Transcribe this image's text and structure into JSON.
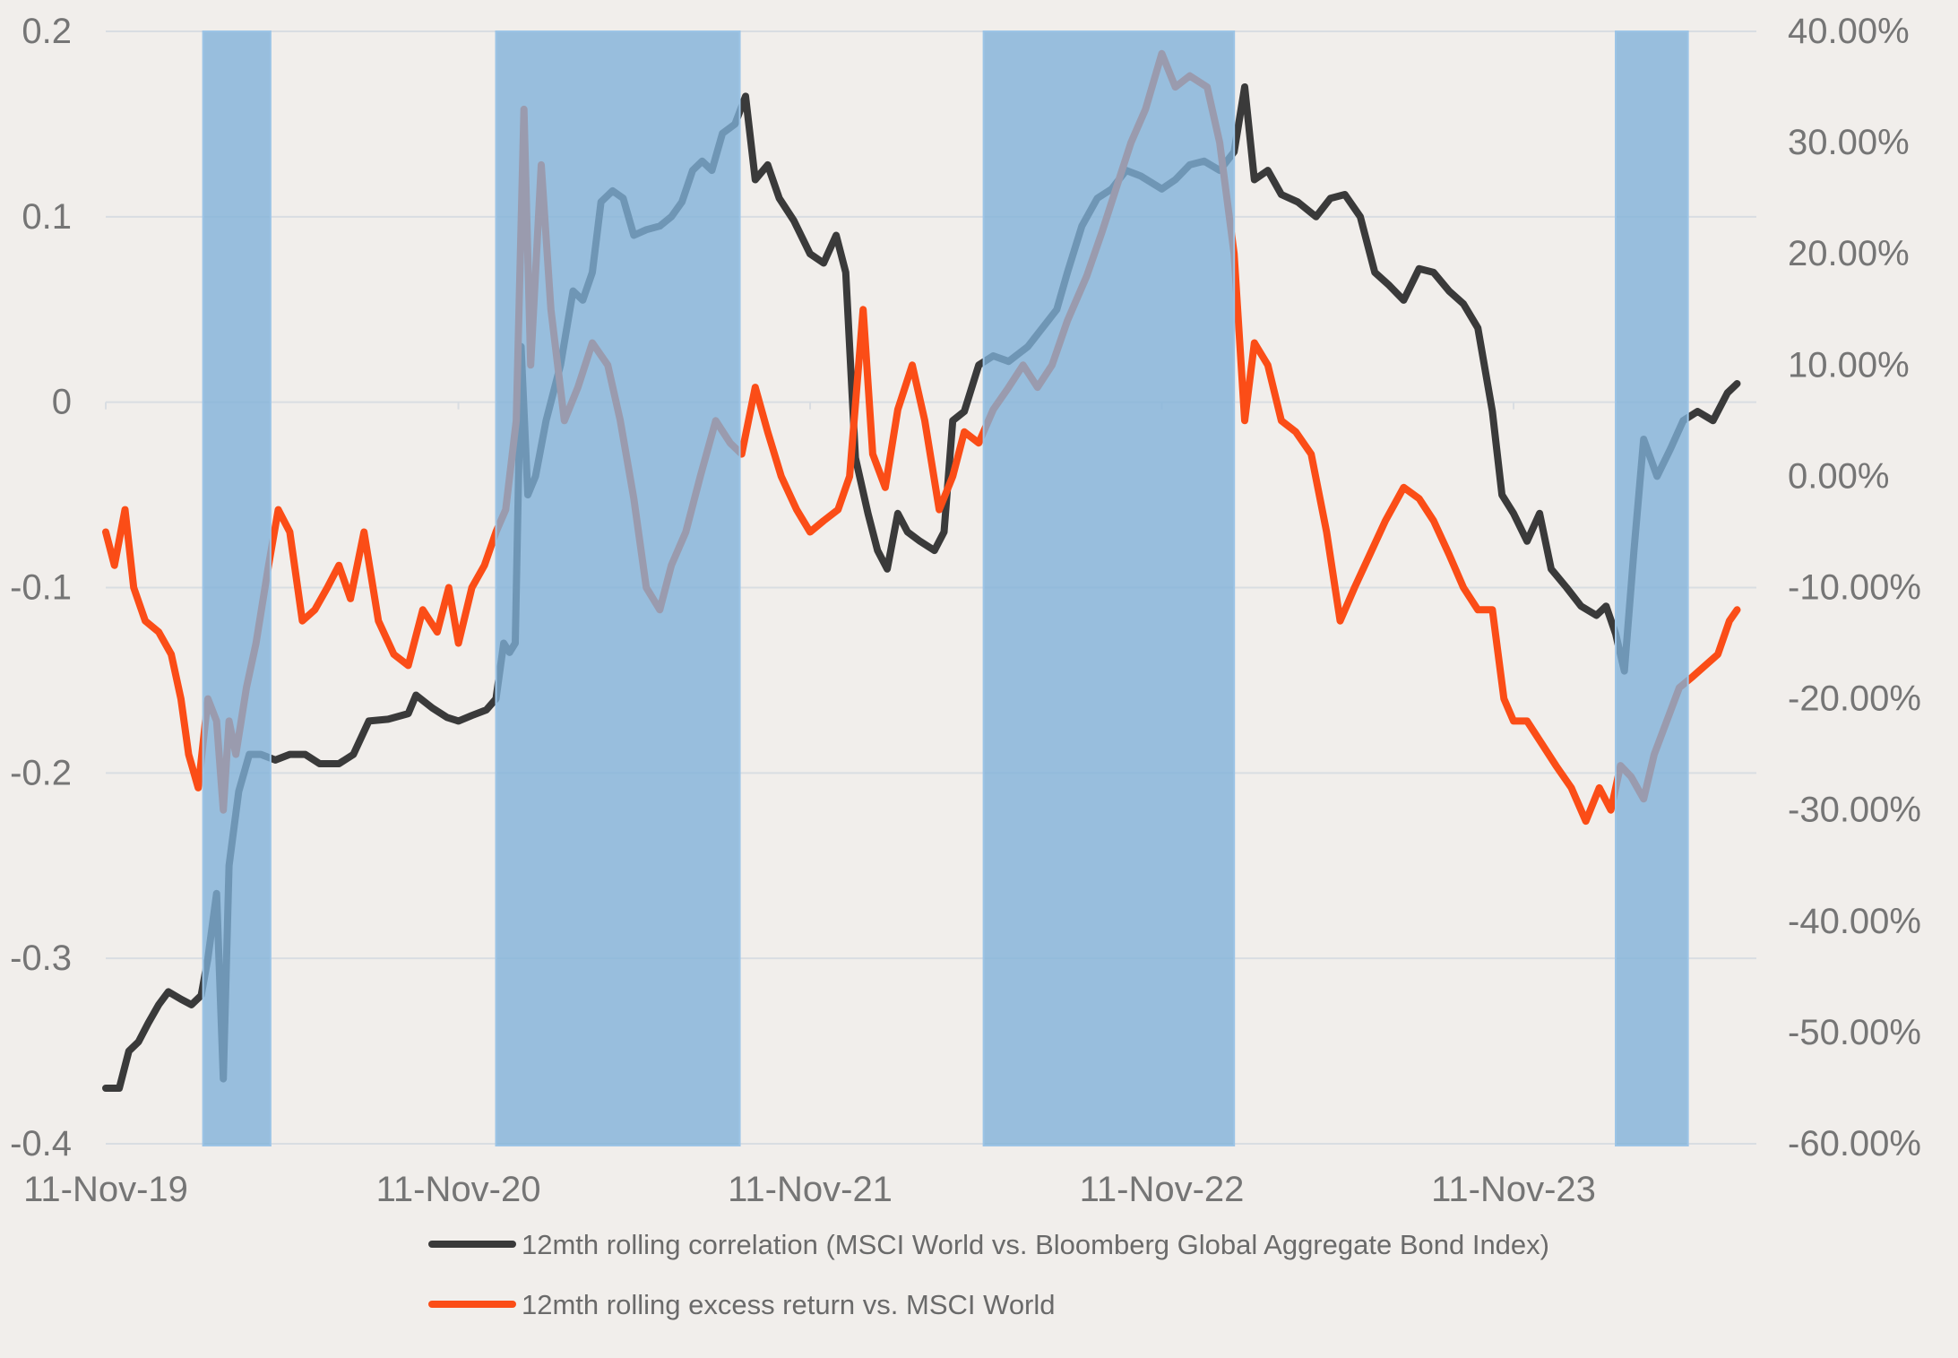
{
  "chart_data": {
    "type": "line",
    "title": "",
    "xlabel": "",
    "ylabel": "",
    "x_axis": {
      "type": "date",
      "range": [
        "2019-11-11",
        "2024-07-20"
      ],
      "tick_labels": [
        "11-Nov-19",
        "11-Nov-20",
        "11-Nov-21",
        "11-Nov-22",
        "11-Nov-23"
      ],
      "tick_dates": [
        "2019-11-11",
        "2020-11-11",
        "2021-11-11",
        "2022-11-11",
        "2023-11-11"
      ]
    },
    "y_left": {
      "range": [
        -0.4,
        0.2
      ],
      "ticks": [
        0.2,
        0.1,
        0,
        -0.1,
        -0.2,
        -0.3,
        -0.4
      ],
      "tick_labels": [
        "0.2",
        "0.1",
        "0",
        "-0.1",
        "-0.2",
        "-0.3",
        "-0.4"
      ]
    },
    "y_right": {
      "range": [
        -60,
        40
      ],
      "ticks": [
        40,
        30,
        20,
        10,
        0,
        -10,
        -20,
        -30,
        -40,
        -50,
        -60
      ],
      "tick_labels": [
        "40.00%",
        "30.00%",
        "20.00%",
        "10.00%",
        "0.00%",
        "-10.00%",
        "-20.00%",
        "-30.00%",
        "-40.00%",
        "-50.00%",
        "-60.00%"
      ]
    },
    "grid": true,
    "legend_position": "bottom",
    "shaded_periods": [
      {
        "start": "2020-02-20",
        "end": "2020-04-30"
      },
      {
        "start": "2020-12-20",
        "end": "2021-08-30"
      },
      {
        "start": "2022-05-10",
        "end": "2023-01-25"
      },
      {
        "start": "2024-02-25",
        "end": "2024-05-10"
      }
    ],
    "shade_color": "#7fb1d9",
    "series": [
      {
        "name": "12mth rolling correlation (MSCI World vs. Bloomberg Global Aggregate Bond Index)",
        "axis": "left",
        "color": "#3a3a3a",
        "points": [
          [
            "2019-11-11",
            -0.37
          ],
          [
            "2019-11-25",
            -0.37
          ],
          [
            "2019-12-05",
            -0.35
          ],
          [
            "2019-12-15",
            -0.345
          ],
          [
            "2019-12-25",
            -0.335
          ],
          [
            "2020-01-05",
            -0.325
          ],
          [
            "2020-01-15",
            -0.318
          ],
          [
            "2020-01-28",
            -0.322
          ],
          [
            "2020-02-08",
            -0.325
          ],
          [
            "2020-02-18",
            -0.32
          ],
          [
            "2020-02-25",
            -0.3
          ],
          [
            "2020-03-05",
            -0.265
          ],
          [
            "2020-03-12",
            -0.365
          ],
          [
            "2020-03-18",
            -0.25
          ],
          [
            "2020-03-28",
            -0.21
          ],
          [
            "2020-04-08",
            -0.19
          ],
          [
            "2020-04-20",
            -0.19
          ],
          [
            "2020-05-05",
            -0.193
          ],
          [
            "2020-05-20",
            -0.19
          ],
          [
            "2020-06-05",
            -0.19
          ],
          [
            "2020-06-20",
            -0.195
          ],
          [
            "2020-07-10",
            -0.195
          ],
          [
            "2020-07-25",
            -0.19
          ],
          [
            "2020-08-10",
            -0.172
          ],
          [
            "2020-08-30",
            -0.171
          ],
          [
            "2020-09-20",
            -0.168
          ],
          [
            "2020-09-28",
            -0.158
          ],
          [
            "2020-10-15",
            -0.165
          ],
          [
            "2020-10-30",
            -0.17
          ],
          [
            "2020-11-11",
            -0.172
          ],
          [
            "2020-11-25",
            -0.169
          ],
          [
            "2020-12-10",
            -0.166
          ],
          [
            "2020-12-20",
            -0.16
          ],
          [
            "2020-12-28",
            -0.13
          ],
          [
            "2021-01-03",
            -0.135
          ],
          [
            "2021-01-09",
            -0.13
          ],
          [
            "2021-01-15",
            0.03
          ],
          [
            "2021-01-22",
            -0.05
          ],
          [
            "2021-01-30",
            -0.04
          ],
          [
            "2021-02-10",
            -0.01
          ],
          [
            "2021-02-25",
            0.02
          ],
          [
            "2021-03-10",
            0.06
          ],
          [
            "2021-03-20",
            0.055
          ],
          [
            "2021-03-30",
            0.07
          ],
          [
            "2021-04-08",
            0.108
          ],
          [
            "2021-04-20",
            0.114
          ],
          [
            "2021-05-01",
            0.11
          ],
          [
            "2021-05-12",
            0.09
          ],
          [
            "2021-05-25",
            0.093
          ],
          [
            "2021-06-08",
            0.095
          ],
          [
            "2021-06-20",
            0.1
          ],
          [
            "2021-07-01",
            0.108
          ],
          [
            "2021-07-12",
            0.125
          ],
          [
            "2021-07-22",
            0.13
          ],
          [
            "2021-08-01",
            0.125
          ],
          [
            "2021-08-12",
            0.145
          ],
          [
            "2021-08-25",
            0.15
          ],
          [
            "2021-09-05",
            0.165
          ],
          [
            "2021-09-15",
            0.12
          ],
          [
            "2021-09-28",
            0.128
          ],
          [
            "2021-10-10",
            0.11
          ],
          [
            "2021-10-25",
            0.098
          ],
          [
            "2021-11-11",
            0.08
          ],
          [
            "2021-11-25",
            0.075
          ],
          [
            "2021-12-08",
            0.09
          ],
          [
            "2021-12-18",
            0.07
          ],
          [
            "2021-12-28",
            -0.03
          ],
          [
            "2022-01-10",
            -0.06
          ],
          [
            "2022-01-20",
            -0.08
          ],
          [
            "2022-01-30",
            -0.09
          ],
          [
            "2022-02-10",
            -0.06
          ],
          [
            "2022-02-20",
            -0.07
          ],
          [
            "2022-03-05",
            -0.075
          ],
          [
            "2022-03-20",
            -0.08
          ],
          [
            "2022-03-30",
            -0.07
          ],
          [
            "2022-04-08",
            -0.01
          ],
          [
            "2022-04-20",
            -0.005
          ],
          [
            "2022-05-05",
            0.02
          ],
          [
            "2022-05-20",
            0.025
          ],
          [
            "2022-06-05",
            0.022
          ],
          [
            "2022-06-25",
            0.03
          ],
          [
            "2022-07-10",
            0.04
          ],
          [
            "2022-07-25",
            0.05
          ],
          [
            "2022-08-05",
            0.07
          ],
          [
            "2022-08-20",
            0.095
          ],
          [
            "2022-09-05",
            0.11
          ],
          [
            "2022-09-20",
            0.115
          ],
          [
            "2022-10-05",
            0.125
          ],
          [
            "2022-10-20",
            0.122
          ],
          [
            "2022-11-11",
            0.115
          ],
          [
            "2022-11-25",
            0.12
          ],
          [
            "2022-12-10",
            0.128
          ],
          [
            "2022-12-25",
            0.13
          ],
          [
            "2023-01-10",
            0.125
          ],
          [
            "2023-01-25",
            0.135
          ],
          [
            "2023-02-05",
            0.17
          ],
          [
            "2023-02-15",
            0.12
          ],
          [
            "2023-03-01",
            0.125
          ],
          [
            "2023-03-15",
            0.112
          ],
          [
            "2023-04-01",
            0.108
          ],
          [
            "2023-04-20",
            0.1
          ],
          [
            "2023-05-05",
            0.11
          ],
          [
            "2023-05-20",
            0.112
          ],
          [
            "2023-06-05",
            0.1
          ],
          [
            "2023-06-20",
            0.07
          ],
          [
            "2023-07-05",
            0.063
          ],
          [
            "2023-07-20",
            0.055
          ],
          [
            "2023-08-05",
            0.072
          ],
          [
            "2023-08-20",
            0.07
          ],
          [
            "2023-09-05",
            0.06
          ],
          [
            "2023-09-20",
            0.053
          ],
          [
            "2023-10-05",
            0.04
          ],
          [
            "2023-10-20",
            -0.005
          ],
          [
            "2023-10-30",
            -0.05
          ],
          [
            "2023-11-11",
            -0.06
          ],
          [
            "2023-11-25",
            -0.075
          ],
          [
            "2023-12-08",
            -0.06
          ],
          [
            "2023-12-20",
            -0.09
          ],
          [
            "2024-01-05",
            -0.1
          ],
          [
            "2024-01-20",
            -0.11
          ],
          [
            "2024-02-05",
            -0.115
          ],
          [
            "2024-02-15",
            -0.11
          ],
          [
            "2024-02-25",
            -0.125
          ],
          [
            "2024-03-05",
            -0.145
          ],
          [
            "2024-03-15",
            -0.08
          ],
          [
            "2024-03-25",
            -0.02
          ],
          [
            "2024-04-08",
            -0.04
          ],
          [
            "2024-04-22",
            -0.025
          ],
          [
            "2024-05-05",
            -0.01
          ],
          [
            "2024-05-20",
            -0.005
          ],
          [
            "2024-06-05",
            -0.01
          ],
          [
            "2024-06-20",
            0.005
          ],
          [
            "2024-06-30",
            0.01
          ]
        ]
      },
      {
        "name": "12mth rolling excess return vs. MSCI World",
        "axis": "right",
        "color": "#fb4d17",
        "points": [
          [
            "2019-11-11",
            -5
          ],
          [
            "2019-11-20",
            -8
          ],
          [
            "2019-12-01",
            -3
          ],
          [
            "2019-12-10",
            -10
          ],
          [
            "2019-12-22",
            -13
          ],
          [
            "2020-01-05",
            -14
          ],
          [
            "2020-01-18",
            -16
          ],
          [
            "2020-01-28",
            -20
          ],
          [
            "2020-02-05",
            -25
          ],
          [
            "2020-02-15",
            -28
          ],
          [
            "2020-02-25",
            -20
          ],
          [
            "2020-03-05",
            -22
          ],
          [
            "2020-03-12",
            -30
          ],
          [
            "2020-03-18",
            -22
          ],
          [
            "2020-03-25",
            -25
          ],
          [
            "2020-04-05",
            -19
          ],
          [
            "2020-04-15",
            -15
          ],
          [
            "2020-04-28",
            -8
          ],
          [
            "2020-05-08",
            -3
          ],
          [
            "2020-05-20",
            -5
          ],
          [
            "2020-06-02",
            -13
          ],
          [
            "2020-06-15",
            -12
          ],
          [
            "2020-06-28",
            -10
          ],
          [
            "2020-07-10",
            -8
          ],
          [
            "2020-07-22",
            -11
          ],
          [
            "2020-08-05",
            -5
          ],
          [
            "2020-08-20",
            -13
          ],
          [
            "2020-09-05",
            -16
          ],
          [
            "2020-09-20",
            -17
          ],
          [
            "2020-10-05",
            -12
          ],
          [
            "2020-10-20",
            -14
          ],
          [
            "2020-11-01",
            -10
          ],
          [
            "2020-11-11",
            -15
          ],
          [
            "2020-11-25",
            -10
          ],
          [
            "2020-12-08",
            -8
          ],
          [
            "2020-12-20",
            -5
          ],
          [
            "2020-12-30",
            -3
          ],
          [
            "2021-01-10",
            5
          ],
          [
            "2021-01-18",
            33
          ],
          [
            "2021-01-25",
            10
          ],
          [
            "2021-02-05",
            28
          ],
          [
            "2021-02-15",
            15
          ],
          [
            "2021-03-01",
            5
          ],
          [
            "2021-03-15",
            8
          ],
          [
            "2021-03-30",
            12
          ],
          [
            "2021-04-15",
            10
          ],
          [
            "2021-04-28",
            5
          ],
          [
            "2021-05-12",
            -2
          ],
          [
            "2021-05-25",
            -10
          ],
          [
            "2021-06-08",
            -12
          ],
          [
            "2021-06-20",
            -8
          ],
          [
            "2021-07-05",
            -5
          ],
          [
            "2021-07-20",
            0
          ],
          [
            "2021-08-05",
            5
          ],
          [
            "2021-08-20",
            3
          ],
          [
            "2021-09-01",
            2
          ],
          [
            "2021-09-15",
            8
          ],
          [
            "2021-09-28",
            4
          ],
          [
            "2021-10-12",
            0
          ],
          [
            "2021-10-28",
            -3
          ],
          [
            "2021-11-11",
            -5
          ],
          [
            "2021-11-25",
            -4
          ],
          [
            "2021-12-10",
            -3
          ],
          [
            "2021-12-22",
            0
          ],
          [
            "2022-01-05",
            15
          ],
          [
            "2022-01-15",
            2
          ],
          [
            "2022-01-28",
            -1
          ],
          [
            "2022-02-10",
            6
          ],
          [
            "2022-02-25",
            10
          ],
          [
            "2022-03-10",
            5
          ],
          [
            "2022-03-25",
            -3
          ],
          [
            "2022-04-08",
            0
          ],
          [
            "2022-04-20",
            4
          ],
          [
            "2022-05-05",
            3
          ],
          [
            "2022-05-20",
            6
          ],
          [
            "2022-06-05",
            8
          ],
          [
            "2022-06-20",
            10
          ],
          [
            "2022-07-05",
            8
          ],
          [
            "2022-07-20",
            10
          ],
          [
            "2022-08-05",
            14
          ],
          [
            "2022-08-25",
            18
          ],
          [
            "2022-09-10",
            22
          ],
          [
            "2022-09-25",
            26
          ],
          [
            "2022-10-10",
            30
          ],
          [
            "2022-10-25",
            33
          ],
          [
            "2022-11-11",
            38
          ],
          [
            "2022-11-25",
            35
          ],
          [
            "2022-12-10",
            36
          ],
          [
            "2022-12-28",
            35
          ],
          [
            "2023-01-10",
            30
          ],
          [
            "2023-01-25",
            20
          ],
          [
            "2023-02-05",
            5
          ],
          [
            "2023-02-15",
            12
          ],
          [
            "2023-03-01",
            10
          ],
          [
            "2023-03-15",
            5
          ],
          [
            "2023-03-30",
            4
          ],
          [
            "2023-04-15",
            2
          ],
          [
            "2023-05-01",
            -5
          ],
          [
            "2023-05-15",
            -13
          ],
          [
            "2023-05-30",
            -10
          ],
          [
            "2023-06-15",
            -7
          ],
          [
            "2023-07-01",
            -4
          ],
          [
            "2023-07-20",
            -1
          ],
          [
            "2023-08-05",
            -2
          ],
          [
            "2023-08-20",
            -4
          ],
          [
            "2023-09-05",
            -7
          ],
          [
            "2023-09-20",
            -10
          ],
          [
            "2023-10-05",
            -12
          ],
          [
            "2023-10-20",
            -12
          ],
          [
            "2023-11-01",
            -20
          ],
          [
            "2023-11-11",
            -22
          ],
          [
            "2023-11-25",
            -22
          ],
          [
            "2023-12-10",
            -24
          ],
          [
            "2023-12-25",
            -26
          ],
          [
            "2024-01-10",
            -28
          ],
          [
            "2024-01-25",
            -31
          ],
          [
            "2024-02-08",
            -28
          ],
          [
            "2024-02-20",
            -30
          ],
          [
            "2024-03-01",
            -26
          ],
          [
            "2024-03-12",
            -27
          ],
          [
            "2024-03-25",
            -29
          ],
          [
            "2024-04-05",
            -25
          ],
          [
            "2024-04-18",
            -22
          ],
          [
            "2024-05-01",
            -19
          ],
          [
            "2024-05-15",
            -18
          ],
          [
            "2024-05-28",
            -17
          ],
          [
            "2024-06-10",
            -16
          ],
          [
            "2024-06-22",
            -13
          ],
          [
            "2024-06-30",
            -12
          ]
        ]
      }
    ]
  }
}
